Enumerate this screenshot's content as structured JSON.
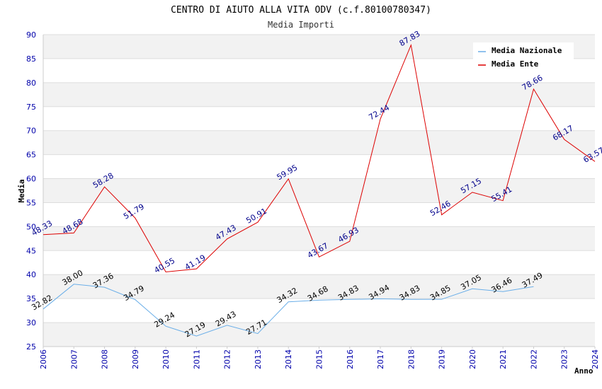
{
  "chart_data": {
    "type": "line",
    "title": "CENTRO DI AIUTO ALLA VITA ODV (c.f.80100780347)",
    "subtitle": "Media Importi",
    "xlabel": "Anno",
    "ylabel": "Media",
    "ylim": [
      25,
      90
    ],
    "yticks": [
      "25",
      "30",
      "35",
      "40",
      "45",
      "50",
      "55",
      "60",
      "65",
      "70",
      "75",
      "80",
      "85",
      "90"
    ],
    "categories": [
      "2006",
      "2007",
      "2008",
      "2009",
      "2010",
      "2011",
      "2012",
      "2013",
      "2014",
      "2015",
      "2016",
      "2017",
      "2018",
      "2019",
      "2020",
      "2021",
      "2022",
      "2023",
      "2024"
    ],
    "grid": true,
    "legend": "top-right",
    "series": [
      {
        "name": "Media Nazionale",
        "color": "#6aaee8",
        "label_color": "#000000",
        "values": [
          32.82,
          38.0,
          37.36,
          34.79,
          29.24,
          27.19,
          29.43,
          27.71,
          34.32,
          34.68,
          34.83,
          34.94,
          34.83,
          34.85,
          37.05,
          36.46,
          37.49,
          null,
          null
        ],
        "labels": [
          "32.82",
          "38.00",
          "37.36",
          "34.79",
          "29.24",
          "27.19",
          "29.43",
          "27.71",
          "34.32",
          "34.68",
          "34.83",
          "34.94",
          "34.83",
          "34.85",
          "37.05",
          "36.46",
          "37.49",
          null,
          null
        ]
      },
      {
        "name": "Media Ente",
        "color": "#dd0000",
        "label_color": "#00008b",
        "values": [
          48.33,
          48.68,
          58.28,
          51.79,
          40.55,
          41.19,
          47.43,
          50.91,
          59.95,
          43.67,
          46.93,
          72.44,
          87.83,
          52.46,
          57.15,
          55.41,
          78.66,
          68.17,
          63.57
        ],
        "labels": [
          "48.33",
          "48.68",
          "58.28",
          "51.79",
          "40.55",
          "41.19",
          "47.43",
          "50.91",
          "59.95",
          "43.67",
          "46.93",
          "72.44",
          "87.83",
          "52.46",
          "57.15",
          "55.41",
          "78.66",
          "68.17",
          "63.57"
        ]
      }
    ]
  }
}
